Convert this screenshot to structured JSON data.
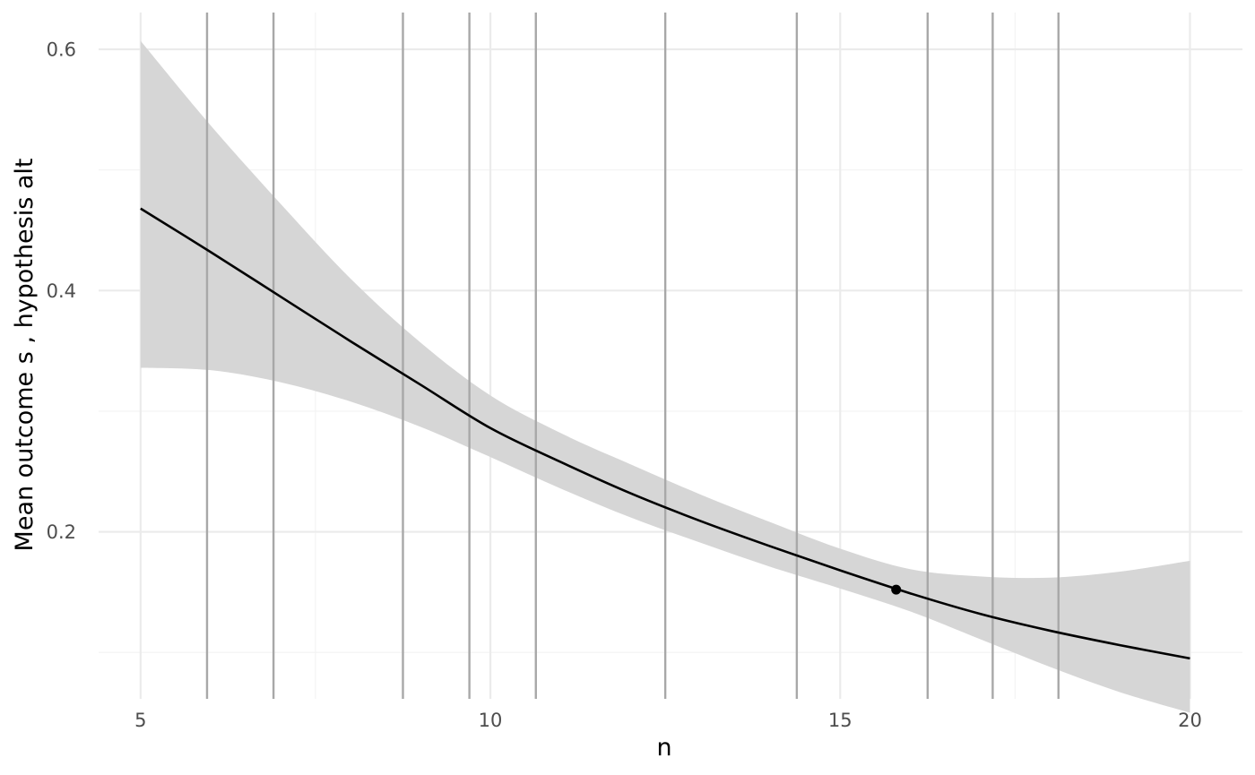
{
  "chart_data": {
    "type": "line",
    "title": "",
    "xlabel": "n",
    "ylabel": "Mean outcome s , hypothesis alt",
    "xlim": [
      4.4,
      20.75
    ],
    "ylim": [
      0.0615,
      0.6305
    ],
    "x_ticks": [
      5,
      10,
      15,
      20
    ],
    "x_tick_labels": [
      "5",
      "10",
      "15",
      "20"
    ],
    "x_minor_ticks": [
      7.5,
      12.5,
      17.5
    ],
    "y_ticks": [
      0.2,
      0.4,
      0.6
    ],
    "y_tick_labels": [
      "0.2",
      "0.4",
      "0.6"
    ],
    "y_minor_ticks": [
      0.1,
      0.3,
      0.5
    ],
    "grid": true,
    "legend": "none",
    "colors": {
      "line": "#000000",
      "ribbon": "#d6d6d6",
      "vlines": "#a8a8a8",
      "grid_major": "#ebebeb",
      "grid_minor": "#f3f3f3",
      "point": "#000000"
    },
    "series": [
      {
        "x": [
          5,
          6,
          7,
          8,
          9,
          10,
          11,
          12,
          13,
          14,
          15,
          16,
          17,
          18,
          19,
          20
        ],
        "y": [
          0.468,
          0.432,
          0.395,
          0.358,
          0.322,
          0.286,
          0.258,
          0.232,
          0.209,
          0.188,
          0.168,
          0.149,
          0.132,
          0.118,
          0.106,
          0.095
        ],
        "lower": [
          0.336,
          0.334,
          0.324,
          0.308,
          0.287,
          0.262,
          0.236,
          0.212,
          0.191,
          0.171,
          0.153,
          0.134,
          0.111,
          0.088,
          0.067,
          0.05
        ],
        "upper": [
          0.607,
          0.537,
          0.472,
          0.41,
          0.357,
          0.313,
          0.282,
          0.256,
          0.231,
          0.208,
          0.186,
          0.169,
          0.163,
          0.162,
          0.167,
          0.176
        ]
      }
    ],
    "vertical_lines": [
      5.95,
      6.9,
      8.75,
      9.7,
      10.65,
      12.5,
      14.38,
      16.25,
      17.18,
      18.12
    ],
    "highlight_point": {
      "x": 15.8,
      "y": 0.152
    }
  }
}
